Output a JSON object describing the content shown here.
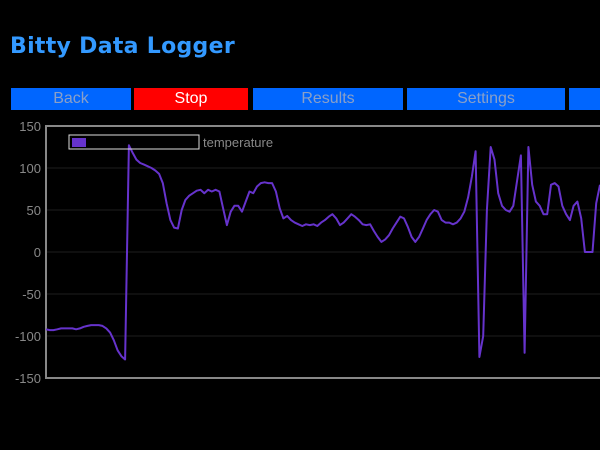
{
  "app": {
    "title": "Bitty Data Logger"
  },
  "nav": {
    "buttons": [
      {
        "label": "Back",
        "active": false
      },
      {
        "label": "Stop",
        "active": true
      },
      {
        "label": "Results",
        "active": false
      },
      {
        "label": "Settings",
        "active": false
      },
      {
        "label": "",
        "active": false
      }
    ]
  },
  "colors": {
    "title": "#3399ff",
    "nav_button": "#0066ff",
    "nav_button_active": "#ff0000",
    "nav_button_text": "#8aa0c8",
    "nav_button_active_text": "#ffffff",
    "series": "#6633cc",
    "axis_text": "#888888",
    "grid": "#1e1e1e",
    "frame": "#888888"
  },
  "chart_data": {
    "type": "line",
    "title": "",
    "xlabel": "",
    "ylabel": "",
    "ylim": [
      -150,
      150
    ],
    "yticks": [
      150,
      100,
      50,
      0,
      -50,
      -100,
      -150
    ],
    "grid": true,
    "legend_position": "top-left",
    "series": [
      {
        "name": "temperature",
        "color": "#6633cc",
        "values": [
          -92,
          -93,
          -93,
          -92,
          -91,
          -91,
          -91,
          -91,
          -92,
          -91,
          -89,
          -88,
          -87,
          -87,
          -87,
          -88,
          -91,
          -96,
          -105,
          -117,
          -124,
          -128,
          127,
          118,
          110,
          106,
          104,
          102,
          100,
          97,
          93,
          82,
          58,
          38,
          29,
          28,
          50,
          62,
          67,
          70,
          73,
          74,
          70,
          74,
          72,
          74,
          72,
          52,
          32,
          48,
          55,
          55,
          48,
          60,
          72,
          70,
          78,
          82,
          83,
          82,
          82,
          72,
          52,
          40,
          43,
          38,
          35,
          33,
          31,
          33,
          32,
          33,
          31,
          35,
          38,
          42,
          45,
          40,
          32,
          35,
          40,
          45,
          42,
          38,
          33,
          32,
          33,
          25,
          18,
          12,
          15,
          20,
          28,
          35,
          42,
          40,
          30,
          18,
          12,
          18,
          28,
          38,
          45,
          50,
          48,
          38,
          35,
          35,
          33,
          35,
          40,
          48,
          65,
          90,
          120,
          -125,
          -100,
          50,
          125,
          110,
          70,
          55,
          50,
          48,
          55,
          85,
          115,
          -120,
          125,
          80,
          60,
          55,
          45,
          45,
          80,
          82,
          78,
          55,
          45,
          38,
          55,
          60,
          40,
          0,
          0,
          0,
          58,
          80
        ]
      }
    ]
  }
}
